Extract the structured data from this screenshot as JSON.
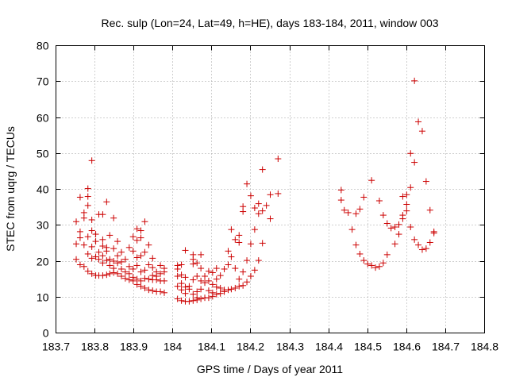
{
  "chart_data": {
    "type": "scatter",
    "title": "Rec. sulp (Lon=24, Lat=49, h=HE), days 183-184, 2011, window 003",
    "xlabel": "GPS time / Days of year 2011",
    "ylabel": "STEC from uqrg / TECUs",
    "xlim": [
      183.7,
      184.8
    ],
    "ylim": [
      0,
      80
    ],
    "xticks": [
      183.7,
      183.8,
      183.9,
      184.0,
      184.1,
      184.2,
      184.3,
      184.4,
      184.5,
      184.6,
      184.7,
      184.8
    ],
    "xtick_labels": [
      "183.7",
      "183.8",
      "183.9",
      "184",
      "184.1",
      "184.2",
      "184.3",
      "184.4",
      "184.5",
      "184.6",
      "184.7",
      "184.8"
    ],
    "yticks": [
      0,
      10,
      20,
      30,
      40,
      50,
      60,
      70,
      80
    ],
    "ytick_labels": [
      "0",
      "10",
      "20",
      "30",
      "40",
      "50",
      "60",
      "70",
      "80"
    ],
    "grid": true,
    "marker": "+",
    "color": "#cc0000",
    "series": [
      {
        "name": "STEC",
        "points": [
          [
            183.752,
            20.5
          ],
          [
            183.752,
            24.8
          ],
          [
            183.752,
            31.0
          ],
          [
            183.762,
            19.0
          ],
          [
            183.762,
            26.5
          ],
          [
            183.762,
            28.2
          ],
          [
            183.762,
            37.8
          ],
          [
            183.772,
            18.5
          ],
          [
            183.772,
            24.5
          ],
          [
            183.772,
            32.0
          ],
          [
            183.772,
            33.5
          ],
          [
            183.782,
            17.2
          ],
          [
            183.782,
            22.0
          ],
          [
            183.782,
            26.8
          ],
          [
            183.782,
            35.5
          ],
          [
            183.782,
            38.0
          ],
          [
            183.782,
            40.2
          ],
          [
            183.792,
            16.5
          ],
          [
            183.792,
            20.8
          ],
          [
            183.792,
            24.0
          ],
          [
            183.792,
            28.5
          ],
          [
            183.792,
            31.5
          ],
          [
            183.792,
            48.0
          ],
          [
            183.802,
            16.0
          ],
          [
            183.802,
            21.2
          ],
          [
            183.802,
            25.5
          ],
          [
            183.802,
            27.5
          ],
          [
            183.81,
            16.0
          ],
          [
            183.81,
            20.5
          ],
          [
            183.81,
            22.5
          ],
          [
            183.81,
            33.0
          ],
          [
            183.82,
            16.0
          ],
          [
            183.82,
            19.5
          ],
          [
            183.82,
            21.5
          ],
          [
            183.82,
            24.2
          ],
          [
            183.82,
            26.0
          ],
          [
            183.82,
            33.0
          ],
          [
            183.83,
            16.2
          ],
          [
            183.83,
            20.2
          ],
          [
            183.83,
            22.8
          ],
          [
            183.83,
            23.8
          ],
          [
            183.83,
            36.5
          ],
          [
            183.838,
            16.5
          ],
          [
            183.838,
            18.8
          ],
          [
            183.838,
            20.5
          ],
          [
            183.838,
            27.2
          ],
          [
            183.848,
            16.8
          ],
          [
            183.848,
            18.0
          ],
          [
            183.848,
            20.0
          ],
          [
            183.848,
            23.5
          ],
          [
            183.848,
            32.0
          ],
          [
            183.858,
            16.5
          ],
          [
            183.858,
            19.5
          ],
          [
            183.858,
            21.5
          ],
          [
            183.858,
            25.5
          ],
          [
            183.868,
            15.8
          ],
          [
            183.868,
            17.8
          ],
          [
            183.868,
            19.8
          ],
          [
            183.868,
            22.5
          ],
          [
            183.878,
            15.2
          ],
          [
            183.878,
            17.0
          ],
          [
            183.878,
            20.5
          ],
          [
            183.888,
            14.8
          ],
          [
            183.888,
            16.5
          ],
          [
            183.888,
            18.5
          ],
          [
            183.888,
            23.8
          ],
          [
            183.898,
            14.5
          ],
          [
            183.898,
            15.5
          ],
          [
            183.898,
            17.8
          ],
          [
            183.898,
            22.8
          ],
          [
            183.898,
            26.8
          ],
          [
            183.908,
            13.5
          ],
          [
            183.908,
            15.0
          ],
          [
            183.908,
            18.8
          ],
          [
            183.908,
            21.0
          ],
          [
            183.908,
            25.8
          ],
          [
            183.908,
            29.0
          ],
          [
            183.918,
            13.0
          ],
          [
            183.918,
            14.5
          ],
          [
            183.918,
            17.0
          ],
          [
            183.918,
            21.5
          ],
          [
            183.918,
            26.5
          ],
          [
            183.918,
            28.5
          ],
          [
            183.928,
            12.5
          ],
          [
            183.928,
            15.2
          ],
          [
            183.928,
            17.5
          ],
          [
            183.928,
            22.5
          ],
          [
            183.928,
            31.0
          ],
          [
            183.938,
            12.0
          ],
          [
            183.938,
            15.0
          ],
          [
            183.938,
            19.0
          ],
          [
            183.938,
            24.5
          ],
          [
            183.948,
            11.8
          ],
          [
            183.948,
            14.8
          ],
          [
            183.948,
            16.0
          ],
          [
            183.948,
            18.2
          ],
          [
            183.948,
            20.8
          ],
          [
            183.958,
            11.5
          ],
          [
            183.958,
            14.8
          ],
          [
            183.958,
            15.8
          ],
          [
            183.958,
            17.0
          ],
          [
            183.968,
            11.5
          ],
          [
            183.968,
            14.5
          ],
          [
            183.968,
            16.5
          ],
          [
            183.968,
            18.8
          ],
          [
            183.978,
            11.2
          ],
          [
            183.978,
            14.5
          ],
          [
            183.978,
            17.0
          ],
          [
            183.978,
            18.0
          ],
          [
            184.012,
            9.5
          ],
          [
            184.012,
            13.0
          ],
          [
            184.012,
            15.8
          ],
          [
            184.012,
            17.8
          ],
          [
            184.012,
            18.8
          ],
          [
            184.022,
            9.0
          ],
          [
            184.022,
            12.0
          ],
          [
            184.022,
            13.8
          ],
          [
            184.022,
            16.2
          ],
          [
            184.022,
            19.0
          ],
          [
            184.032,
            8.8
          ],
          [
            184.032,
            11.0
          ],
          [
            184.032,
            12.8
          ],
          [
            184.032,
            15.5
          ],
          [
            184.032,
            23.0
          ],
          [
            184.042,
            8.8
          ],
          [
            184.042,
            12.2
          ],
          [
            184.042,
            13.0
          ],
          [
            184.052,
            9.0
          ],
          [
            184.052,
            10.8
          ],
          [
            184.052,
            14.8
          ],
          [
            184.052,
            19.2
          ],
          [
            184.052,
            20.5
          ],
          [
            184.052,
            21.8
          ],
          [
            184.062,
            9.2
          ],
          [
            184.062,
            9.8
          ],
          [
            184.062,
            11.5
          ],
          [
            184.062,
            15.8
          ],
          [
            184.062,
            19.5
          ],
          [
            184.072,
            9.5
          ],
          [
            184.072,
            12.2
          ],
          [
            184.072,
            14.5
          ],
          [
            184.072,
            18.0
          ],
          [
            184.072,
            21.8
          ],
          [
            184.082,
            9.8
          ],
          [
            184.082,
            14.0
          ],
          [
            184.082,
            15.8
          ],
          [
            184.092,
            9.8
          ],
          [
            184.092,
            11.8
          ],
          [
            184.092,
            14.5
          ],
          [
            184.092,
            17.2
          ],
          [
            184.102,
            10.2
          ],
          [
            184.102,
            11.2
          ],
          [
            184.102,
            13.5
          ],
          [
            184.102,
            16.8
          ],
          [
            184.112,
            10.8
          ],
          [
            184.112,
            12.8
          ],
          [
            184.112,
            15.0
          ],
          [
            184.112,
            18.0
          ],
          [
            184.122,
            11.0
          ],
          [
            184.122,
            12.5
          ],
          [
            184.122,
            16.0
          ],
          [
            184.132,
            11.5
          ],
          [
            184.132,
            12.0
          ],
          [
            184.132,
            17.8
          ],
          [
            184.142,
            12.0
          ],
          [
            184.142,
            19.0
          ],
          [
            184.142,
            22.8
          ],
          [
            184.15,
            12.2
          ],
          [
            184.15,
            21.2
          ],
          [
            184.15,
            28.8
          ],
          [
            184.16,
            12.5
          ],
          [
            184.16,
            18.0
          ],
          [
            184.16,
            26.0
          ],
          [
            184.17,
            13.0
          ],
          [
            184.17,
            15.0
          ],
          [
            184.17,
            25.2
          ],
          [
            184.17,
            27.2
          ],
          [
            184.18,
            13.2
          ],
          [
            184.18,
            17.0
          ],
          [
            184.18,
            33.8
          ],
          [
            184.18,
            35.2
          ],
          [
            184.19,
            14.2
          ],
          [
            184.19,
            20.2
          ],
          [
            184.19,
            41.5
          ],
          [
            184.2,
            15.8
          ],
          [
            184.2,
            24.8
          ],
          [
            184.2,
            38.2
          ],
          [
            184.21,
            17.5
          ],
          [
            184.21,
            28.8
          ],
          [
            184.21,
            34.8
          ],
          [
            184.22,
            20.2
          ],
          [
            184.22,
            33.2
          ],
          [
            184.22,
            36.0
          ],
          [
            184.23,
            25.0
          ],
          [
            184.23,
            34.0
          ],
          [
            184.23,
            45.5
          ],
          [
            184.24,
            35.5
          ],
          [
            184.25,
            31.8
          ],
          [
            184.25,
            38.5
          ],
          [
            184.27,
            38.8
          ],
          [
            184.27,
            48.5
          ],
          [
            184.432,
            37.0
          ],
          [
            184.432,
            39.8
          ],
          [
            184.44,
            34.2
          ],
          [
            184.45,
            33.5
          ],
          [
            184.46,
            28.8
          ],
          [
            184.47,
            33.2
          ],
          [
            184.47,
            24.5
          ],
          [
            184.48,
            34.5
          ],
          [
            184.48,
            22.0
          ],
          [
            184.49,
            37.8
          ],
          [
            184.49,
            20.2
          ],
          [
            184.5,
            19.2
          ],
          [
            184.51,
            18.8
          ],
          [
            184.51,
            42.5
          ],
          [
            184.52,
            18.2
          ],
          [
            184.53,
            36.8
          ],
          [
            184.53,
            18.5
          ],
          [
            184.54,
            32.8
          ],
          [
            184.54,
            19.5
          ],
          [
            184.55,
            30.5
          ],
          [
            184.55,
            21.8
          ],
          [
            184.56,
            29.2
          ],
          [
            184.57,
            24.8
          ],
          [
            184.57,
            29.5
          ],
          [
            184.58,
            27.5
          ],
          [
            184.58,
            30.2
          ],
          [
            184.59,
            38.0
          ],
          [
            184.59,
            31.8
          ],
          [
            184.59,
            32.8
          ],
          [
            184.6,
            38.5
          ],
          [
            184.6,
            34.0
          ],
          [
            184.6,
            35.8
          ],
          [
            184.61,
            40.5
          ],
          [
            184.61,
            50.0
          ],
          [
            184.61,
            29.5
          ],
          [
            184.62,
            47.5
          ],
          [
            184.62,
            70.2
          ],
          [
            184.62,
            26.0
          ],
          [
            184.63,
            58.8
          ],
          [
            184.63,
            24.5
          ],
          [
            184.64,
            56.2
          ],
          [
            184.64,
            23.2
          ],
          [
            184.65,
            42.2
          ],
          [
            184.65,
            23.5
          ],
          [
            184.66,
            34.2
          ],
          [
            184.66,
            25.2
          ],
          [
            184.67,
            27.8
          ],
          [
            184.67,
            28.2
          ]
        ]
      }
    ]
  }
}
